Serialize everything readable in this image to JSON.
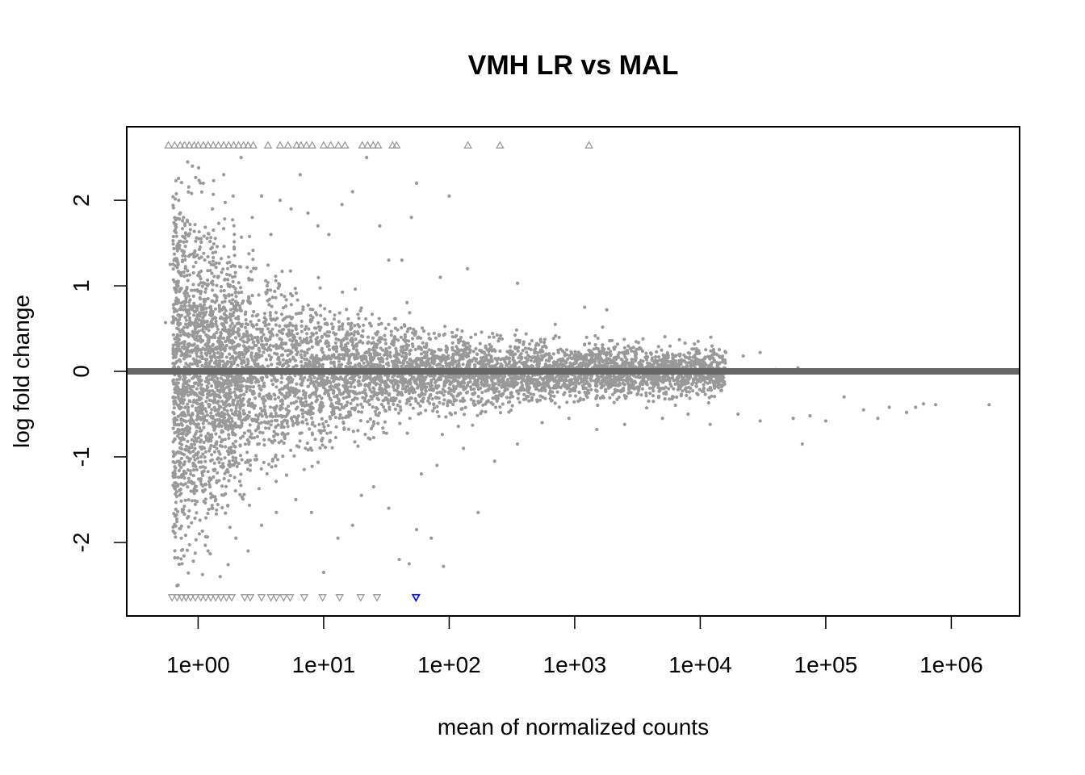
{
  "chart_data": {
    "type": "scatter",
    "title": "VMH LR vs MAL",
    "xlabel": "mean of normalized counts",
    "ylabel": "log fold change",
    "x_scale": "log10",
    "xlim": [
      0.27,
      3500000.0
    ],
    "ylim": [
      -2.86,
      2.86
    ],
    "x_ticks": [
      {
        "value": 1,
        "label": "1e+00"
      },
      {
        "value": 10,
        "label": "1e+01"
      },
      {
        "value": 100,
        "label": "1e+02"
      },
      {
        "value": 1000,
        "label": "1e+03"
      },
      {
        "value": 10000,
        "label": "1e+04"
      },
      {
        "value": 100000,
        "label": "1e+05"
      },
      {
        "value": 1000000,
        "label": "1e+06"
      }
    ],
    "y_ticks": [
      {
        "value": -2,
        "label": "-2"
      },
      {
        "value": -1,
        "label": "-1"
      },
      {
        "value": 0,
        "label": "0"
      },
      {
        "value": 1,
        "label": "1"
      },
      {
        "value": 2,
        "label": "2"
      }
    ],
    "reference_line": {
      "y": 0,
      "color": "#666666"
    },
    "colors": {
      "points": "#999999",
      "significant": "#0000ff",
      "axis": "#000000"
    },
    "grid": false,
    "legend": "none",
    "series": [
      {
        "marker": "dot",
        "points": [
          [
            0.55,
            0.57
          ],
          [
            0.62,
            0.57
          ],
          [
            0.6,
            1.25
          ],
          [
            0.7,
            2.0
          ],
          [
            0.8,
            1.6
          ],
          [
            0.9,
            2.4
          ],
          [
            1.1,
            2.2
          ],
          [
            1.3,
            1.9
          ],
          [
            1.6,
            2.3
          ],
          [
            1.9,
            2.05
          ],
          [
            2.2,
            2.5
          ],
          [
            2.7,
            1.8
          ],
          [
            3.2,
            2.05
          ],
          [
            3.8,
            1.6
          ],
          [
            4.5,
            2.0
          ],
          [
            5.5,
            1.9
          ],
          [
            6.5,
            2.3
          ],
          [
            7.5,
            1.85
          ],
          [
            9,
            1.7
          ],
          [
            11,
            1.6
          ],
          [
            14,
            1.95
          ],
          [
            17,
            2.1
          ],
          [
            22,
            2.5
          ],
          [
            28,
            1.7
          ],
          [
            33,
            1.3
          ],
          [
            42,
            1.3
          ],
          [
            50,
            1.8
          ],
          [
            55,
            2.2
          ],
          [
            85,
            1.1
          ],
          [
            100,
            2.05
          ],
          [
            140,
            1.2
          ],
          [
            350,
            1.03
          ],
          [
            700,
            0.55
          ],
          [
            1200,
            0.75
          ],
          [
            1800,
            0.72
          ],
          [
            3500,
            0.38
          ],
          [
            9000,
            0.32
          ],
          [
            16000,
            0.22
          ],
          [
            22000,
            0.18
          ],
          [
            30000,
            0.22
          ],
          [
            40000,
            0.02
          ],
          [
            60000,
            0.04
          ],
          [
            1.2,
            -2.1
          ],
          [
            1.5,
            -2.4
          ],
          [
            2.0,
            -1.95
          ],
          [
            2.5,
            -2.1
          ],
          [
            3.2,
            -1.8
          ],
          [
            4.2,
            -1.65
          ],
          [
            6,
            -1.5
          ],
          [
            8,
            -1.65
          ],
          [
            10,
            -2.35
          ],
          [
            13,
            -1.95
          ],
          [
            17,
            -1.8
          ],
          [
            20,
            -1.45
          ],
          [
            25,
            -1.35
          ],
          [
            33,
            -1.6
          ],
          [
            40,
            -2.2
          ],
          [
            48,
            -2.25
          ],
          [
            55,
            -1.85
          ],
          [
            60,
            -1.2
          ],
          [
            72,
            -1.95
          ],
          [
            80,
            -1.1
          ],
          [
            90,
            -2.28
          ],
          [
            130,
            -0.9
          ],
          [
            170,
            -1.65
          ],
          [
            230,
            -1.05
          ],
          [
            350,
            -0.85
          ],
          [
            550,
            -0.6
          ],
          [
            900,
            -0.55
          ],
          [
            1500,
            -0.68
          ],
          [
            2500,
            -0.62
          ],
          [
            5000,
            -0.55
          ],
          [
            8000,
            -0.5
          ],
          [
            12000,
            -0.62
          ],
          [
            20000,
            -0.5
          ],
          [
            30000,
            -0.58
          ],
          [
            55000,
            -0.55
          ],
          [
            65000,
            -0.85
          ],
          [
            75000,
            -0.52
          ],
          [
            100000,
            -0.58
          ],
          [
            140000,
            -0.3
          ],
          [
            200000,
            -0.45
          ],
          [
            260000,
            -0.55
          ],
          [
            320000,
            -0.42
          ],
          [
            440000,
            -0.48
          ],
          [
            520000,
            -0.42
          ],
          [
            600000,
            -0.38
          ],
          [
            750000,
            -0.39
          ],
          [
            2000000,
            -0.39
          ]
        ]
      },
      {
        "marker": "triangle-up",
        "points": [
          [
            0.58,
            2.64
          ],
          [
            0.65,
            2.64
          ],
          [
            0.72,
            2.64
          ],
          [
            0.78,
            2.64
          ],
          [
            0.85,
            2.64
          ],
          [
            0.93,
            2.64
          ],
          [
            1.0,
            2.64
          ],
          [
            1.1,
            2.64
          ],
          [
            1.2,
            2.64
          ],
          [
            1.32,
            2.64
          ],
          [
            1.45,
            2.64
          ],
          [
            1.6,
            2.64
          ],
          [
            1.75,
            2.64
          ],
          [
            1.92,
            2.64
          ],
          [
            2.1,
            2.64
          ],
          [
            2.3,
            2.64
          ],
          [
            2.5,
            2.64
          ],
          [
            2.75,
            2.64
          ],
          [
            3.6,
            2.64
          ],
          [
            4.5,
            2.64
          ],
          [
            5.2,
            2.64
          ],
          [
            6.1,
            2.64
          ],
          [
            6.6,
            2.64
          ],
          [
            7.3,
            2.64
          ],
          [
            8.1,
            2.64
          ],
          [
            10.0,
            2.64
          ],
          [
            11.4,
            2.64
          ],
          [
            13.1,
            2.64
          ],
          [
            14.8,
            2.64
          ],
          [
            20.3,
            2.64
          ],
          [
            22.4,
            2.64
          ],
          [
            24.8,
            2.64
          ],
          [
            27.1,
            2.64
          ],
          [
            35.4,
            2.64
          ],
          [
            38.0,
            2.64
          ],
          [
            141,
            2.64
          ],
          [
            254,
            2.64
          ],
          [
            1300,
            2.64
          ]
        ]
      },
      {
        "marker": "triangle-down",
        "points": [
          [
            0.62,
            -2.64
          ],
          [
            0.68,
            -2.64
          ],
          [
            0.74,
            -2.64
          ],
          [
            0.8,
            -2.64
          ],
          [
            0.87,
            -2.64
          ],
          [
            0.95,
            -2.64
          ],
          [
            1.05,
            -2.64
          ],
          [
            1.15,
            -2.64
          ],
          [
            1.26,
            -2.64
          ],
          [
            1.38,
            -2.64
          ],
          [
            1.52,
            -2.64
          ],
          [
            1.68,
            -2.64
          ],
          [
            1.85,
            -2.64
          ],
          [
            2.35,
            -2.64
          ],
          [
            2.6,
            -2.64
          ],
          [
            3.2,
            -2.64
          ],
          [
            3.8,
            -2.64
          ],
          [
            4.2,
            -2.64
          ],
          [
            4.8,
            -2.64
          ],
          [
            5.4,
            -2.64
          ],
          [
            7.0,
            -2.64
          ],
          [
            9.8,
            -2.64
          ],
          [
            13.4,
            -2.64
          ],
          [
            19.7,
            -2.64
          ],
          [
            26.6,
            -2.64
          ]
        ]
      },
      {
        "marker": "triangle-down",
        "significant": true,
        "points": [
          [
            54.4,
            -2.64
          ]
        ]
      }
    ]
  }
}
